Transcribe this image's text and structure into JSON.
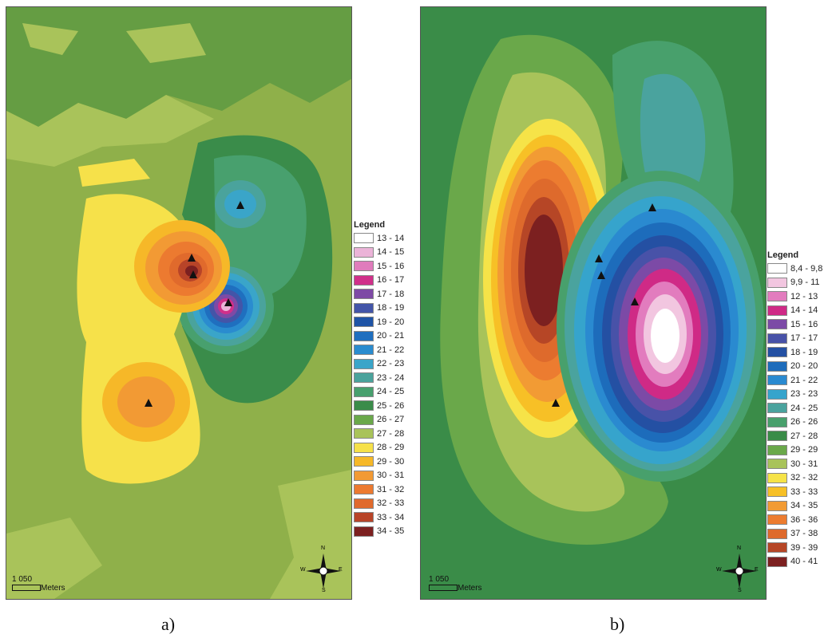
{
  "maps": [
    {
      "caption": "a)",
      "legend_title": "Legend",
      "scale_value": "1 050",
      "scale_unit": "Meters",
      "compass": {
        "n": "N",
        "s": "S",
        "e": "E",
        "w": "W"
      },
      "legend": [
        {
          "label": "13 - 14",
          "color": "#ffffff"
        },
        {
          "label": "14 - 15",
          "color": "#ebb3d8"
        },
        {
          "label": "15 - 16",
          "color": "#e07cbc"
        },
        {
          "label": "16 - 17",
          "color": "#d0308a"
        },
        {
          "label": "17 - 18",
          "color": "#7e4aa5"
        },
        {
          "label": "18 - 19",
          "color": "#4355a8"
        },
        {
          "label": "19 - 20",
          "color": "#1f54a6"
        },
        {
          "label": "20 - 21",
          "color": "#1f6fbf"
        },
        {
          "label": "21 - 22",
          "color": "#2a8ccf"
        },
        {
          "label": "22 - 23",
          "color": "#3aa5c9"
        },
        {
          "label": "23 - 24",
          "color": "#4aa39c"
        },
        {
          "label": "24 - 25",
          "color": "#48a06e"
        },
        {
          "label": "25 - 26",
          "color": "#3a8c4a"
        },
        {
          "label": "26 - 27",
          "color": "#6aa84a"
        },
        {
          "label": "27 - 28",
          "color": "#a9c35a"
        },
        {
          "label": "28 - 29",
          "color": "#f6e14a"
        },
        {
          "label": "29 - 30",
          "color": "#f6b828"
        },
        {
          "label": "30 - 31",
          "color": "#f29a34"
        },
        {
          "label": "31 - 32",
          "color": "#ec7a30"
        },
        {
          "label": "32 - 33",
          "color": "#e06a2c"
        },
        {
          "label": "33 - 34",
          "color": "#b84428"
        },
        {
          "label": "34 - 35",
          "color": "#7c2020"
        }
      ]
    },
    {
      "caption": "b)",
      "legend_title": "Legend",
      "scale_value": "1 050",
      "scale_unit": "Meters",
      "compass": {
        "n": "N",
        "s": "S",
        "e": "E",
        "w": "W"
      },
      "legend": [
        {
          "label": "8,4 - 9,8",
          "color": "#ffffff"
        },
        {
          "label": "9,9 - 11",
          "color": "#f2c6e0"
        },
        {
          "label": "12 - 13",
          "color": "#e27cbe"
        },
        {
          "label": "14 - 14",
          "color": "#cf2a86"
        },
        {
          "label": "15 - 16",
          "color": "#7c4aa6"
        },
        {
          "label": "17 - 17",
          "color": "#4852a8"
        },
        {
          "label": "18 - 19",
          "color": "#2450a3"
        },
        {
          "label": "20 - 20",
          "color": "#1d6cbb"
        },
        {
          "label": "21 - 22",
          "color": "#2a8ad0"
        },
        {
          "label": "23 - 23",
          "color": "#36a4cc"
        },
        {
          "label": "24 - 25",
          "color": "#4aa39e"
        },
        {
          "label": "26 - 26",
          "color": "#48a06c"
        },
        {
          "label": "27 - 28",
          "color": "#3a8c48"
        },
        {
          "label": "29 - 29",
          "color": "#6aa84a"
        },
        {
          "label": "30 - 31",
          "color": "#a8c35a"
        },
        {
          "label": "32 - 32",
          "color": "#f6e348"
        },
        {
          "label": "33 - 33",
          "color": "#f7c026"
        },
        {
          "label": "34 - 35",
          "color": "#f29b34"
        },
        {
          "label": "36 - 36",
          "color": "#ec7c30"
        },
        {
          "label": "37 - 38",
          "color": "#de6a2c"
        },
        {
          "label": "39 - 39",
          "color": "#b64626"
        },
        {
          "label": "40 - 41",
          "color": "#7c2020"
        }
      ]
    }
  ]
}
